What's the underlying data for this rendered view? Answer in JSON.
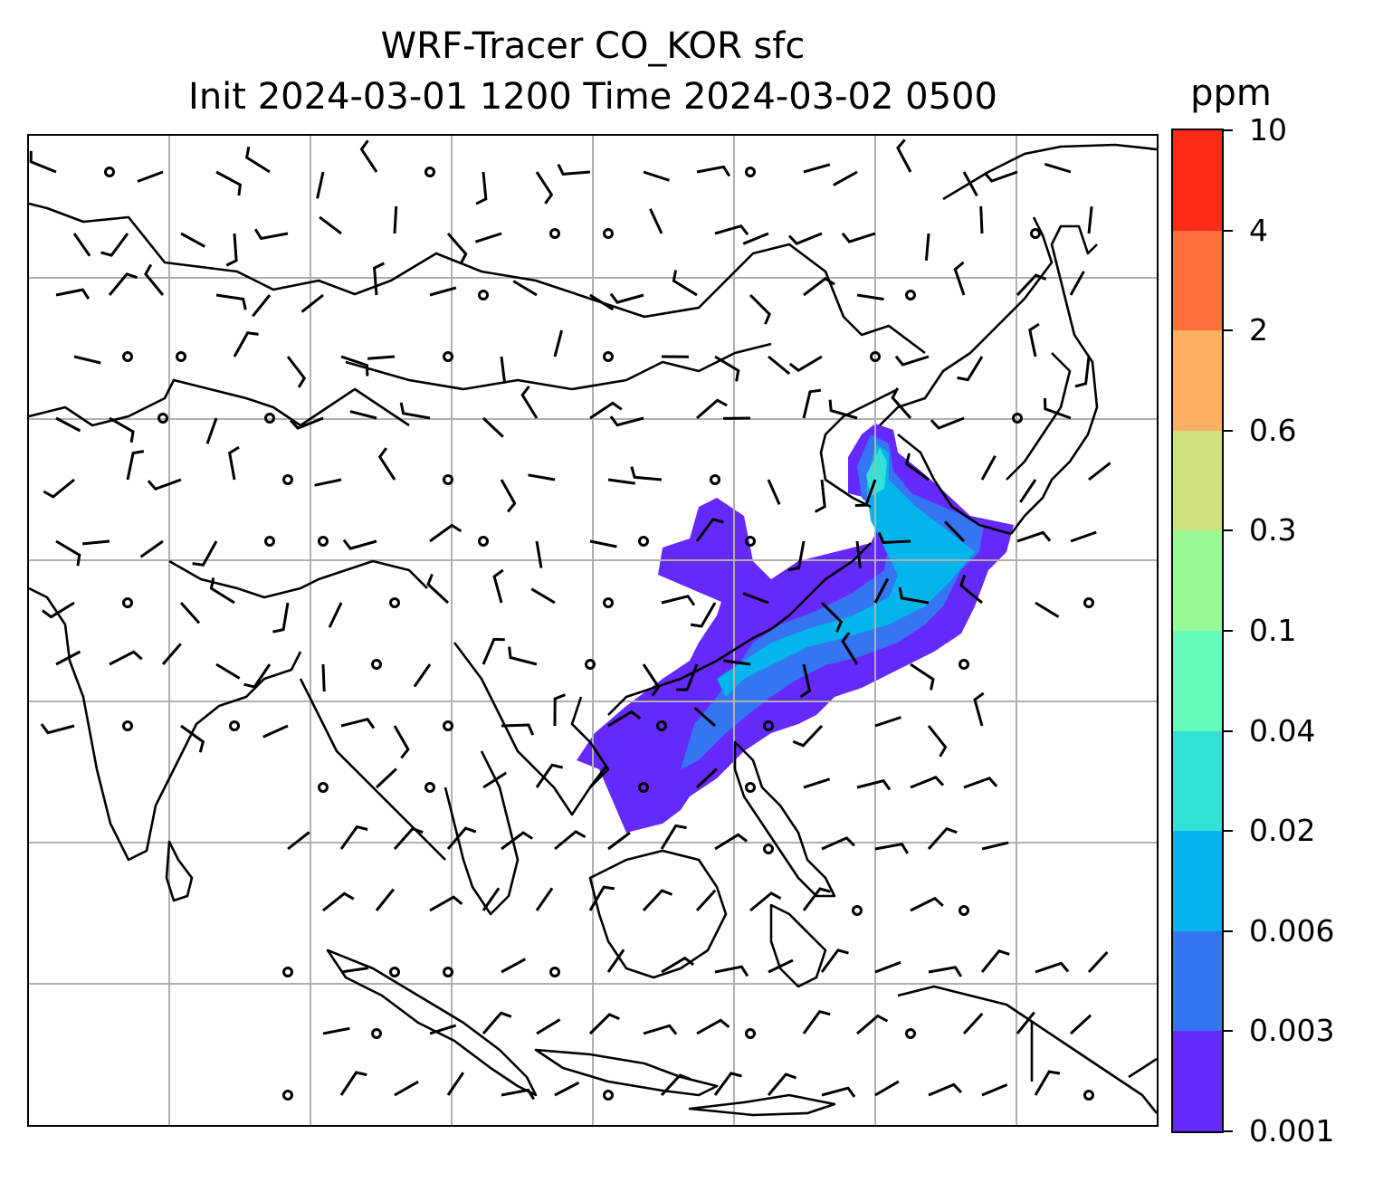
{
  "title": {
    "line1": "WRF-Tracer CO_KOR sfc",
    "line2": "Init 2024-03-01 1200 Time 2024-03-02 0500"
  },
  "colorbar": {
    "unit": "ppm",
    "levels": [
      "0.001",
      "0.003",
      "0.006",
      "0.02",
      "0.04",
      "0.1",
      "0.3",
      "0.6",
      "2",
      "4",
      "10"
    ],
    "colors": [
      "#6529fb",
      "#3575f2",
      "#04b4ec",
      "#33e2d6",
      "#66fabb",
      "#98fa96",
      "#cfe283",
      "#fdb063",
      "#fe6f3b",
      "#fc2917"
    ]
  },
  "map": {
    "frame_color": "#000000",
    "gridline_color": "#b0b0b0",
    "coastline_color": "#000000",
    "barb_color": "#000000"
  }
}
